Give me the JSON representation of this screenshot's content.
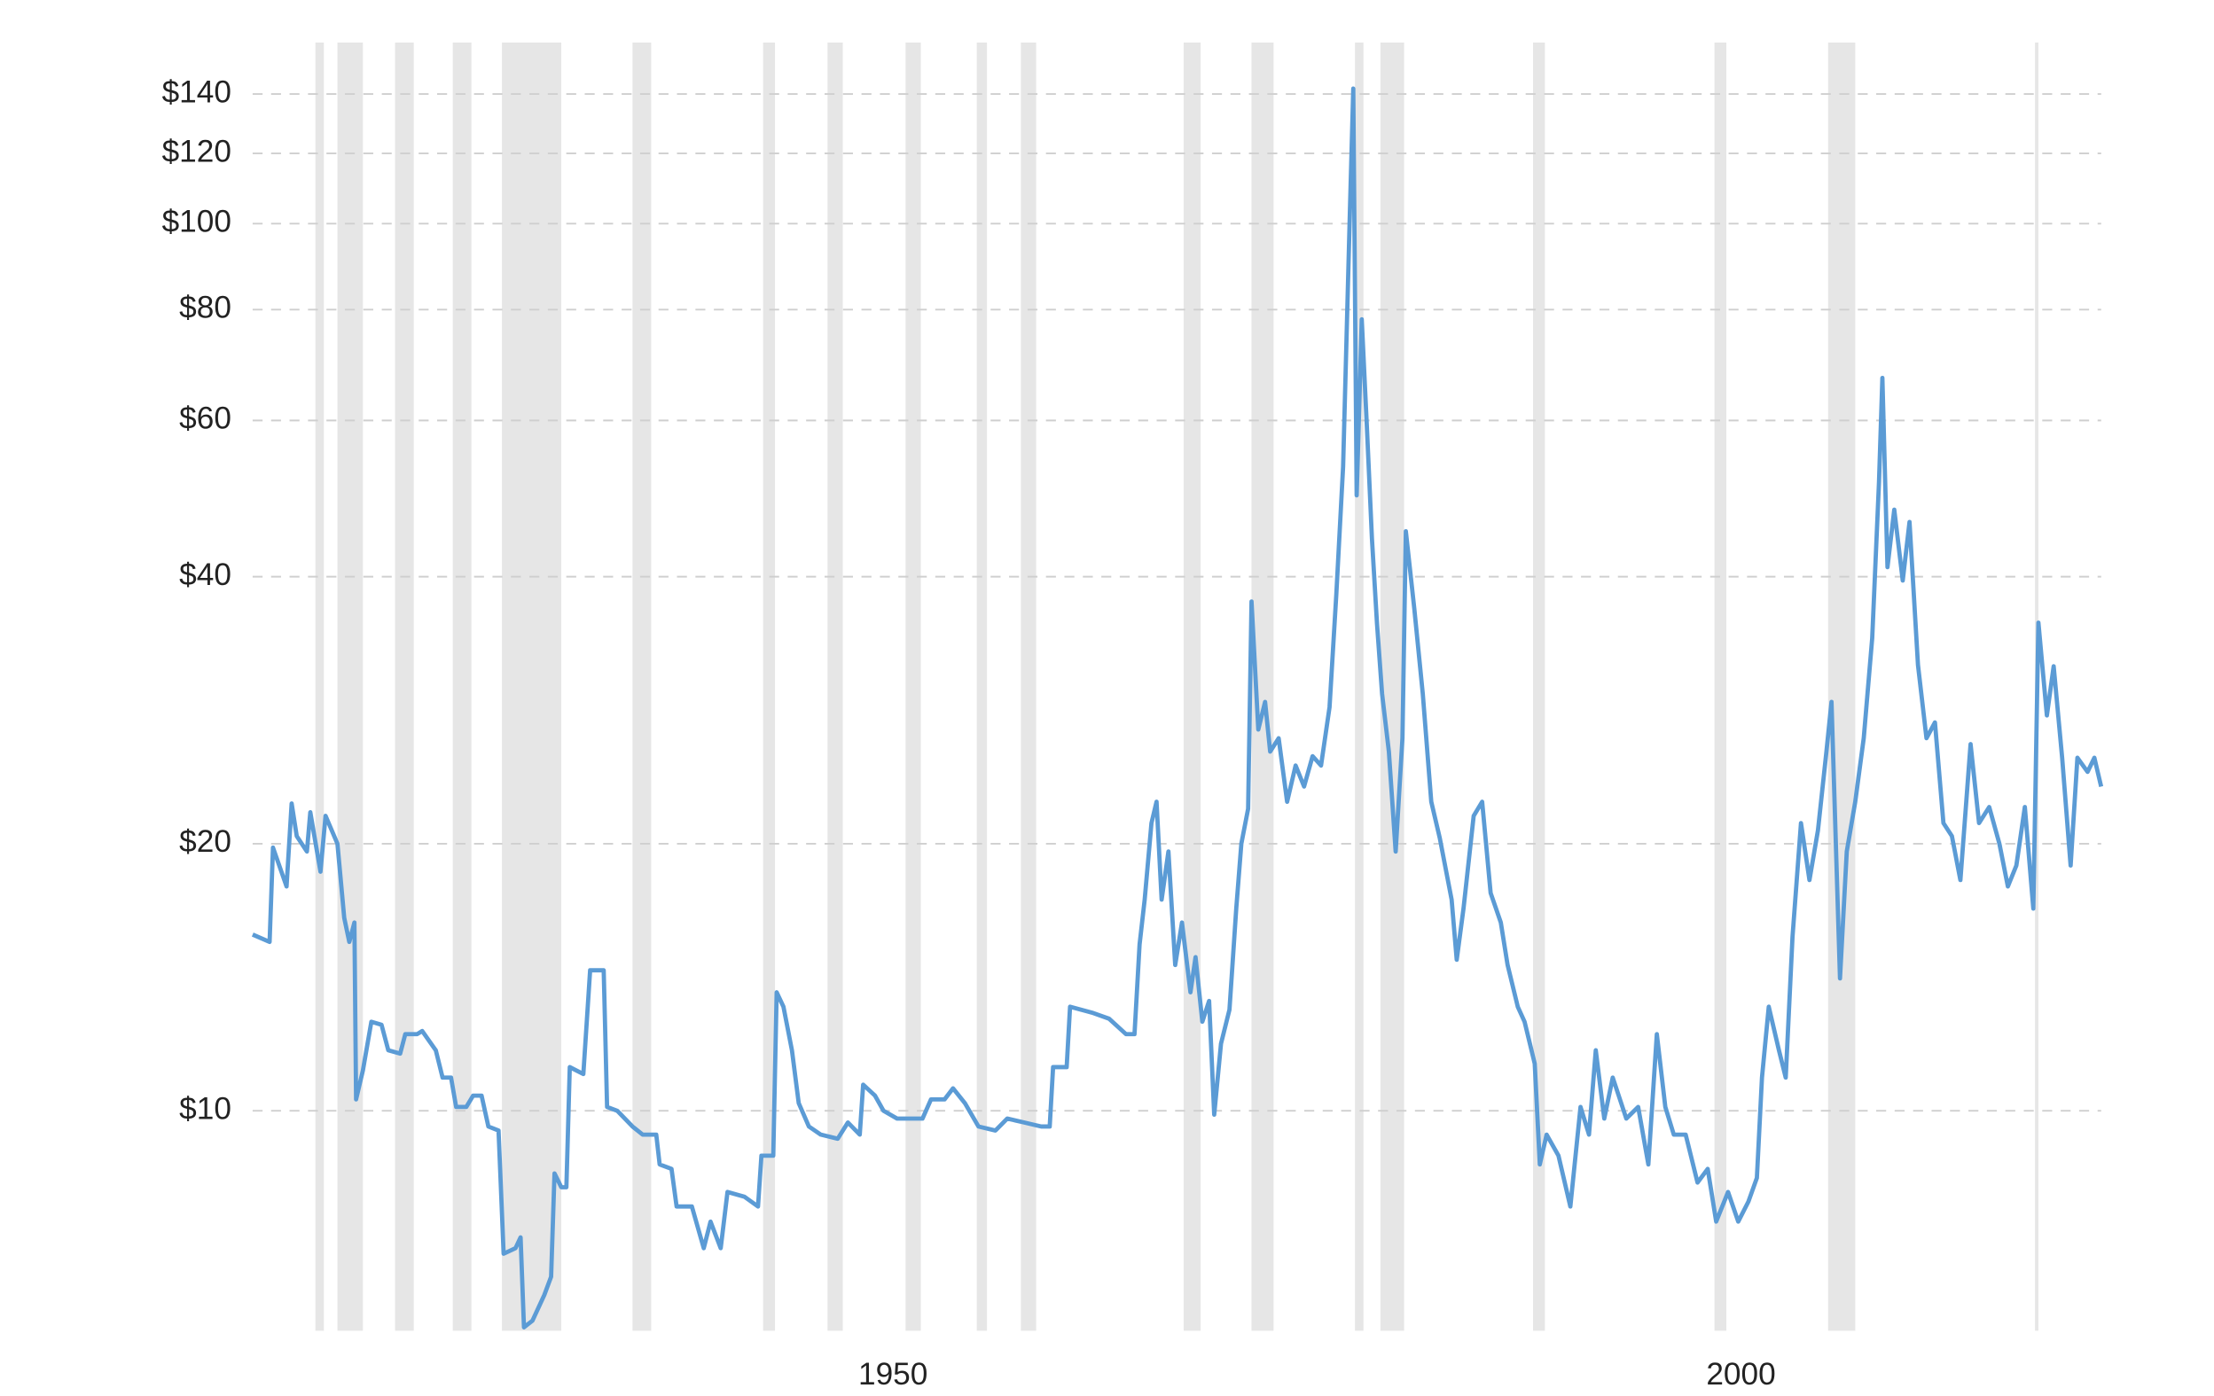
{
  "chart_data": {
    "type": "line",
    "log_y": true,
    "grid": true,
    "color": "#5b9bd5",
    "band_color": "#e6e6e6",
    "xlim": [
      1915,
      2024
    ],
    "xticks": [
      1950,
      2000
    ],
    "ylim": [
      5.65,
      160
    ],
    "yticks": [
      {
        "value": 10,
        "label": "$10"
      },
      {
        "value": 20,
        "label": "$20"
      },
      {
        "value": 40,
        "label": "$40"
      },
      {
        "value": 60,
        "label": "$60"
      },
      {
        "value": 80,
        "label": "$80"
      },
      {
        "value": 100,
        "label": "$100"
      },
      {
        "value": 120,
        "label": "$120"
      },
      {
        "value": 140,
        "label": "$140"
      }
    ],
    "recessions": [
      [
        1918.7,
        1919.2
      ],
      [
        1920.0,
        1921.5
      ],
      [
        1923.4,
        1924.5
      ],
      [
        1926.8,
        1927.9
      ],
      [
        1929.7,
        1933.2
      ],
      [
        1937.4,
        1938.5
      ],
      [
        1945.1,
        1945.8
      ],
      [
        1948.9,
        1949.8
      ],
      [
        1953.5,
        1954.4
      ],
      [
        1957.7,
        1958.3
      ],
      [
        1960.3,
        1961.2
      ],
      [
        1969.9,
        1970.9
      ],
      [
        1973.9,
        1975.2
      ],
      [
        1980.0,
        1980.5
      ],
      [
        1981.5,
        1982.9
      ],
      [
        1990.5,
        1991.2
      ],
      [
        2001.2,
        2001.9
      ],
      [
        2007.9,
        2009.5
      ],
      [
        2020.1,
        2020.3
      ]
    ],
    "x": [
      1915.0,
      1916.0,
      1916.2,
      1917.0,
      1917.3,
      1917.6,
      1918.2,
      1918.4,
      1919.0,
      1919.3,
      1920.0,
      1920.4,
      1920.7,
      1921.0,
      1921.1,
      1921.5,
      1922.0,
      1922.6,
      1923.0,
      1923.7,
      1924.0,
      1924.7,
      1925.0,
      1925.8,
      1926.2,
      1926.7,
      1927.0,
      1927.6,
      1928.0,
      1928.5,
      1928.9,
      1929.5,
      1929.8,
      1930.5,
      1930.8,
      1931.0,
      1931.5,
      1932.2,
      1932.6,
      1932.8,
      1933.2,
      1933.5,
      1933.7,
      1934.5,
      1934.9,
      1935.7,
      1935.9,
      1936.5,
      1937.4,
      1938.0,
      1938.8,
      1939.0,
      1939.7,
      1940.0,
      1940.9,
      1941.6,
      1942.0,
      1942.6,
      1943.0,
      1944.0,
      1944.8,
      1945.0,
      1945.7,
      1945.9,
      1946.3,
      1946.8,
      1947.2,
      1947.8,
      1948.5,
      1949.5,
      1950.1,
      1950.8,
      1951.0,
      1951.7,
      1952.2,
      1953.0,
      1954.5,
      1955.0,
      1955.8,
      1956.3,
      1957.0,
      1957.8,
      1958.8,
      1959.5,
      1960.5,
      1961.5,
      1962.0,
      1962.2,
      1963.0,
      1963.2,
      1964.5,
      1965.5,
      1966.5,
      1967.0,
      1967.3,
      1967.6,
      1968.0,
      1968.3,
      1968.6,
      1969.0,
      1969.4,
      1969.8,
      1970.3,
      1970.6,
      1971.0,
      1971.4,
      1971.7,
      1972.1,
      1972.6,
      1973.0,
      1973.3,
      1973.7,
      1973.9,
      1974.3,
      1974.7,
      1975.0,
      1975.5,
      1976.0,
      1976.5,
      1977.0,
      1977.5,
      1978.0,
      1978.5,
      1978.9,
      1979.3,
      1979.7,
      1979.9,
      1980.1,
      1980.4,
      1980.7,
      1981.0,
      1981.3,
      1981.6,
      1982.0,
      1982.4,
      1982.8,
      1983.0,
      1983.5,
      1984.0,
      1984.5,
      1985.0,
      1985.7,
      1986.0,
      1986.4,
      1987.0,
      1987.5,
      1988.0,
      1988.6,
      1989.0,
      1989.6,
      1990.0,
      1990.6,
      1990.9,
      1991.3,
      1992.0,
      1992.7,
      1993.3,
      1993.8,
      1994.2,
      1994.7,
      1995.2,
      1996.0,
      1996.7,
      1997.3,
      1997.8,
      1998.3,
      1998.8,
      1999.5,
      2000.2,
      2000.8,
      2001.3,
      2002.0,
      2002.6,
      2003.2,
      2003.7,
      2004.0,
      2004.4,
      2005.0,
      2005.4,
      2005.8,
      2006.3,
      2006.8,
      2007.3,
      2007.8,
      2008.1,
      2008.6,
      2009.0,
      2009.5,
      2010.0,
      2010.5,
      2010.9,
      2011.1,
      2011.4,
      2011.8,
      2012.3,
      2012.7,
      2013.2,
      2013.7,
      2014.2,
      2014.7,
      2015.2,
      2015.7,
      2016.3,
      2016.8,
      2017.4,
      2018.0,
      2018.5,
      2019.0,
      2019.5,
      2020.0,
      2020.3,
      2020.8,
      2021.2,
      2021.7,
      2022.2,
      2022.6,
      2023.2,
      2023.6,
      2024.0
    ],
    "values": [
      15.8,
      15.5,
      19.8,
      17.9,
      22.2,
      20.4,
      19.6,
      21.7,
      18.6,
      21.5,
      20,
      16.5,
      15.5,
      16.3,
      10.3,
      11.1,
      12.6,
      12.5,
      11.7,
      11.6,
      12.2,
      12.2,
      12.3,
      11.7,
      10.9,
      10.9,
      10.1,
      10.1,
      10.4,
      10.4,
      9.6,
      9.5,
      6.9,
      7.0,
      7.2,
      5.7,
      5.8,
      6.2,
      6.5,
      8.5,
      8.2,
      8.2,
      11.2,
      11.0,
      14.4,
      14.4,
      10.1,
      10,
      9.6,
      9.4,
      9.4,
      8.7,
      8.6,
      7.8,
      7.8,
      7.0,
      7.5,
      7.0,
      8.1,
      8.0,
      7.8,
      8.9,
      8.9,
      13.6,
      13.1,
      11.7,
      10.2,
      9.6,
      9.4,
      9.3,
      9.7,
      9.4,
      10.7,
      10.4,
      10.0,
      9.8,
      9.8,
      10.3,
      10.3,
      10.6,
      10.2,
      9.6,
      9.5,
      9.8,
      9.7,
      9.6,
      9.6,
      11.2,
      11.2,
      13.1,
      12.9,
      12.7,
      12.2,
      12.2,
      15.4,
      17.3,
      21.1,
      22.3,
      17.3,
      19.6,
      14.6,
      16.3,
      13.6,
      14.9,
      12.6,
      13.3,
      9.9,
      11.9,
      13,
      16.9,
      20,
      21.9,
      37.5,
      26.9,
      28.9,
      25.4,
      26.3,
      22.3,
      24.5,
      23.2,
      25.1,
      24.5,
      28.5,
      38.2,
      53.2,
      103,
      142,
      49.4,
      78,
      59.2,
      44.2,
      35.4,
      29.5,
      25.4,
      19.6,
      26.3,
      45,
      36.8,
      29.5,
      22.3,
      20.3,
      17.3,
      14.8,
      16.9,
      21.5,
      22.3,
      17.6,
      16.3,
      14.6,
      13.1,
      12.6,
      11.3,
      8.7,
      9.4,
      8.9,
      7.8,
      10.1,
      9.4,
      11.7,
      9.8,
      10.9,
      9.8,
      10.1,
      8.7,
      12.2,
      10.1,
      9.4,
      9.4,
      8.3,
      8.6,
      7.5,
      8.1,
      7.5,
      7.9,
      8.4,
      10.9,
      13.1,
      11.7,
      10.9,
      15.7,
      21.1,
      18.2,
      20.7,
      25.4,
      28.9,
      14.1,
      19.6,
      22.3,
      26.3,
      34.1,
      51.1,
      67,
      41.0,
      47.6,
      39.6,
      46.1,
      31.8,
      26.3,
      27.4,
      21.1,
      20.4,
      18.2,
      25.9,
      21.1,
      22,
      20,
      17.9,
      18.9,
      22,
      16.9,
      35.5,
      27.9,
      31.7,
      25,
      18.9,
      25,
      24.1,
      25,
      23.2
    ]
  }
}
